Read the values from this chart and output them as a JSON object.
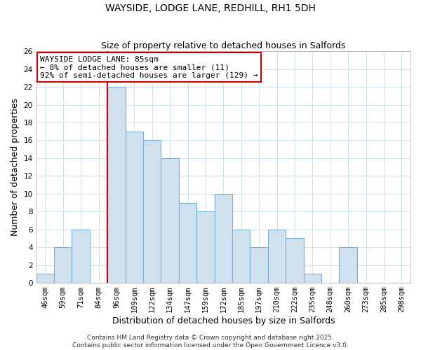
{
  "title": "WAYSIDE, LODGE LANE, REDHILL, RH1 5DH",
  "subtitle": "Size of property relative to detached houses in Salfords",
  "xlabel": "Distribution of detached houses by size in Salfords",
  "ylabel": "Number of detached properties",
  "bin_labels": [
    "46sqm",
    "59sqm",
    "71sqm",
    "84sqm",
    "96sqm",
    "109sqm",
    "122sqm",
    "134sqm",
    "147sqm",
    "159sqm",
    "172sqm",
    "185sqm",
    "197sqm",
    "210sqm",
    "222sqm",
    "235sqm",
    "248sqm",
    "260sqm",
    "273sqm",
    "285sqm",
    "298sqm"
  ],
  "bar_heights": [
    1,
    4,
    6,
    0,
    22,
    17,
    16,
    14,
    9,
    8,
    10,
    6,
    4,
    6,
    5,
    1,
    0,
    4,
    0,
    0,
    0
  ],
  "bar_color": "#cfe0ef",
  "bar_edge_color": "#7ab0d4",
  "vline_color": "#cc0000",
  "annotation_text_line1": "WAYSIDE LODGE LANE: 85sqm",
  "annotation_text_line2": "← 8% of detached houses are smaller (11)",
  "annotation_text_line3": "92% of semi-detached houses are larger (129) →",
  "annotation_box_facecolor": "#ffffff",
  "annotation_box_edgecolor": "#cc0000",
  "ylim": [
    0,
    26
  ],
  "yticks": [
    0,
    2,
    4,
    6,
    8,
    10,
    12,
    14,
    16,
    18,
    20,
    22,
    24,
    26
  ],
  "footer_text": "Contains HM Land Registry data © Crown copyright and database right 2025.\nContains public sector information licensed under the Open Government Licence v3.0.",
  "background_color": "#ffffff",
  "grid_color": "#d0e4f0",
  "title_fontsize": 10,
  "subtitle_fontsize": 9,
  "axis_label_fontsize": 9,
  "tick_fontsize": 7.5,
  "annotation_fontsize": 8,
  "footer_fontsize": 6.5,
  "vline_x_index": 4
}
